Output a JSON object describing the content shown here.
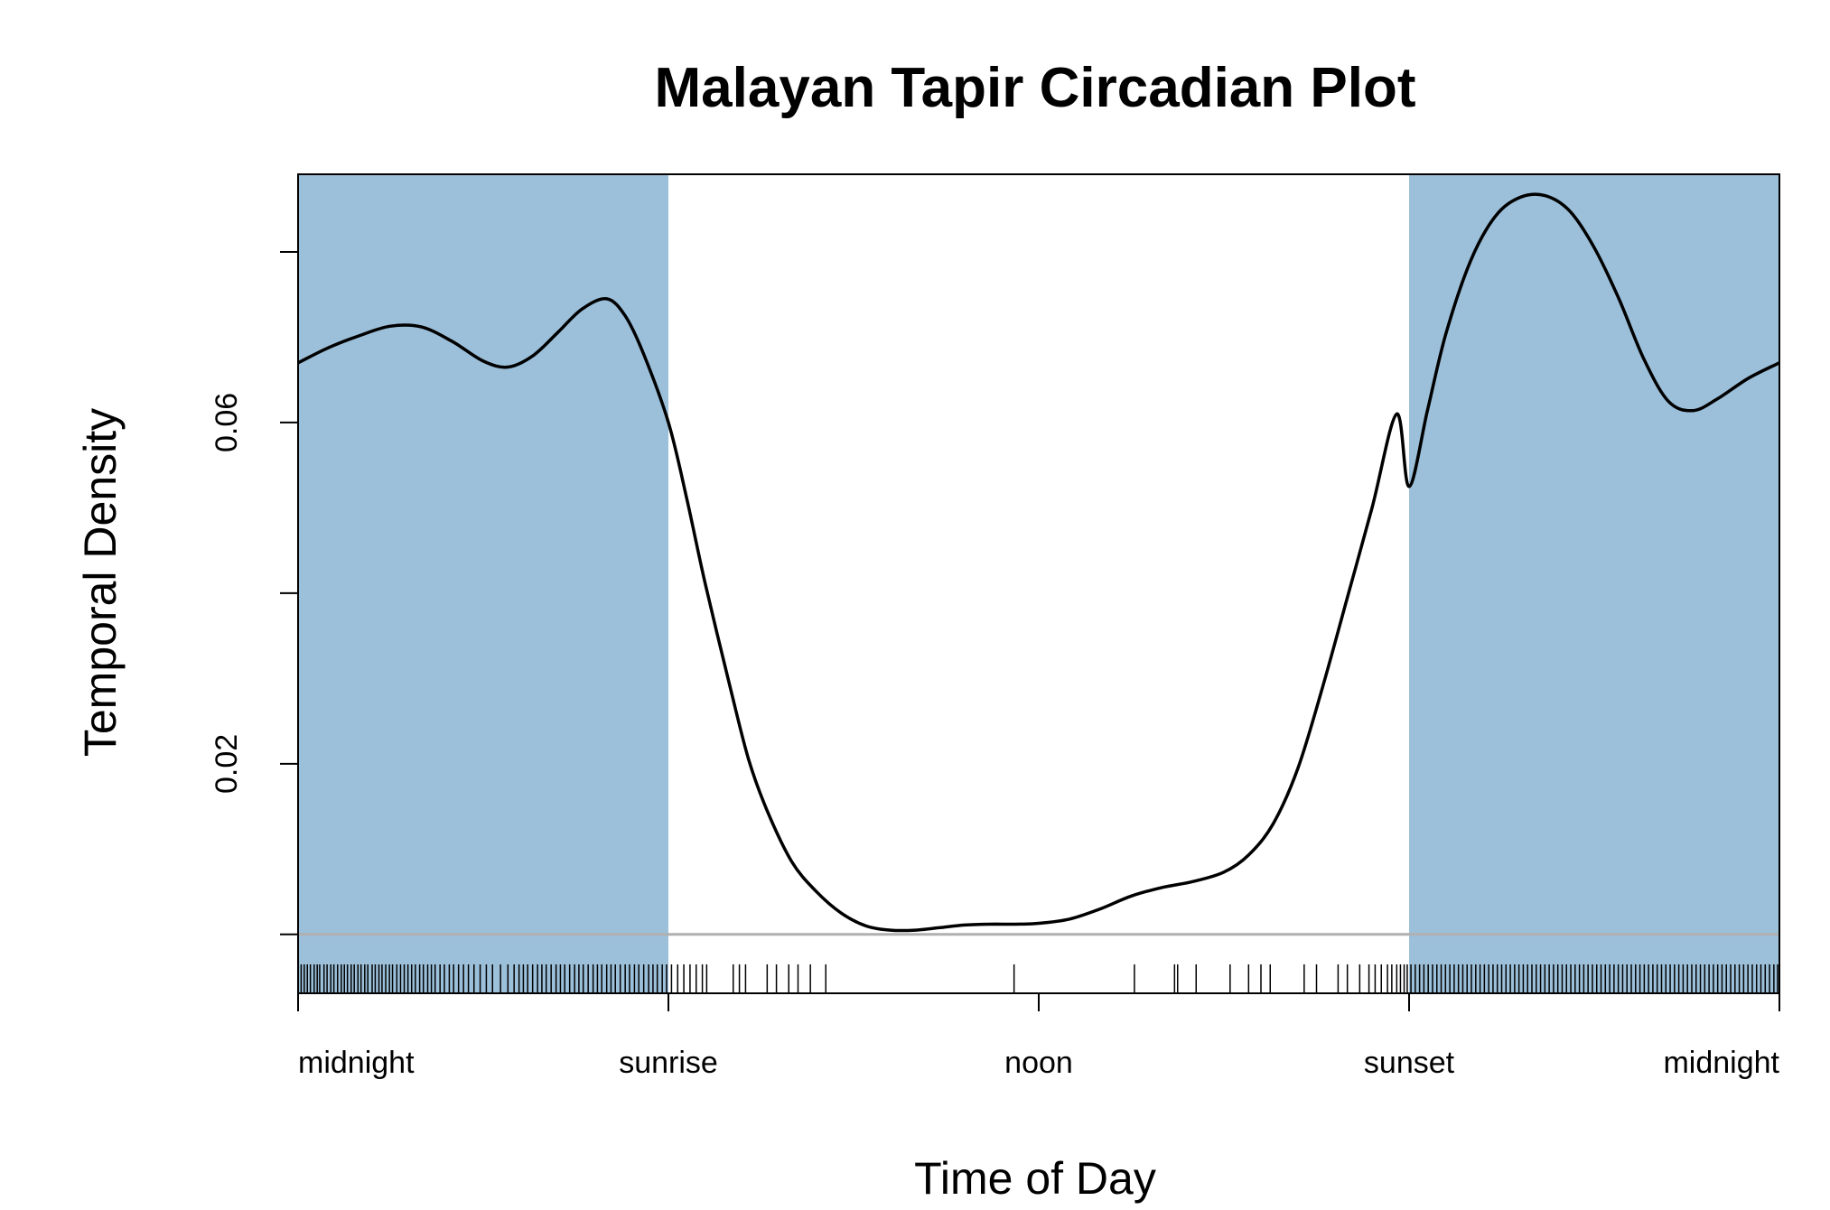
{
  "chart_data": {
    "type": "area",
    "title": "Malayan Tapir Circadian Plot",
    "xlabel": "Time of Day",
    "ylabel": "Temporal Density",
    "xlim": [
      0,
      24
    ],
    "ylim": [
      -0.0069,
      0.0891
    ],
    "x_ticks": [
      {
        "value": 0,
        "label": "midnight"
      },
      {
        "value": 6,
        "label": "sunrise"
      },
      {
        "value": 12,
        "label": "noon"
      },
      {
        "value": 18,
        "label": "sunset"
      },
      {
        "value": 24,
        "label": "midnight"
      }
    ],
    "y_ticks": [
      {
        "value": 0.0,
        "label": ""
      },
      {
        "value": 0.02,
        "label": "0.02"
      },
      {
        "value": 0.04,
        "label": ""
      },
      {
        "value": 0.06,
        "label": "0.06"
      },
      {
        "value": 0.08,
        "label": ""
      }
    ],
    "night_shading": [
      {
        "start": 0,
        "end": 6
      },
      {
        "start": 18,
        "end": 24
      }
    ],
    "colors": {
      "night": "#9cc0da",
      "curve": "#000000",
      "baseline": "#b0b0b0",
      "rug": "#000000"
    },
    "density_curve": {
      "x": [
        0,
        0.5,
        1,
        1.5,
        2,
        2.5,
        3,
        3.4,
        3.8,
        4.2,
        4.6,
        5,
        5.3,
        5.6,
        6,
        6.3,
        6.6,
        7,
        7.3,
        7.6,
        8,
        8.4,
        8.8,
        9.2,
        9.6,
        10,
        10.4,
        10.8,
        11.2,
        11.6,
        12,
        12.5,
        13,
        13.5,
        14,
        14.5,
        15,
        15.4,
        15.8,
        16.2,
        16.6,
        17,
        17.4,
        17.8,
        18,
        18.3,
        18.6,
        19,
        19.4,
        19.8,
        20.2,
        20.6,
        21,
        21.4,
        21.8,
        22.2,
        22.6,
        23,
        23.5,
        24
      ],
      "y": [
        0.067,
        0.0688,
        0.0702,
        0.0713,
        0.0712,
        0.0695,
        0.0672,
        0.0665,
        0.0678,
        0.0705,
        0.0733,
        0.0745,
        0.0725,
        0.068,
        0.06,
        0.051,
        0.041,
        0.029,
        0.0205,
        0.0145,
        0.0085,
        0.005,
        0.0025,
        0.001,
        0.0005,
        0.0005,
        0.0008,
        0.0011,
        0.0012,
        0.0012,
        0.0013,
        0.0018,
        0.003,
        0.0045,
        0.0055,
        0.0062,
        0.0073,
        0.0093,
        0.013,
        0.0195,
        0.029,
        0.0395,
        0.05,
        0.061,
        0.0525,
        0.0615,
        0.0705,
        0.079,
        0.0842,
        0.0864,
        0.0866,
        0.0848,
        0.0805,
        0.0745,
        0.0675,
        0.0625,
        0.0614,
        0.0628,
        0.0652,
        0.067
      ]
    },
    "rug_events": [
      0.05,
      0.1,
      0.15,
      0.2,
      0.26,
      0.31,
      0.35,
      0.42,
      0.47,
      0.53,
      0.58,
      0.64,
      0.7,
      0.75,
      0.8,
      0.86,
      0.91,
      0.97,
      1.02,
      1.08,
      1.13,
      1.2,
      1.25,
      1.31,
      1.36,
      1.42,
      1.48,
      1.53,
      1.6,
      1.66,
      1.72,
      1.78,
      1.84,
      1.9,
      1.97,
      2.03,
      2.1,
      2.16,
      2.22,
      2.3,
      2.37,
      2.45,
      2.52,
      2.6,
      2.68,
      2.76,
      2.85,
      2.95,
      3.05,
      3.15,
      3.28,
      3.4,
      3.5,
      3.58,
      3.65,
      3.72,
      3.8,
      3.88,
      3.95,
      4.02,
      4.1,
      4.18,
      4.25,
      4.32,
      4.4,
      4.48,
      4.55,
      4.62,
      4.7,
      4.78,
      4.85,
      4.92,
      5.0,
      5.07,
      5.14,
      5.22,
      5.3,
      5.37,
      5.45,
      5.52,
      5.6,
      5.68,
      5.75,
      5.82,
      5.9,
      5.97,
      6.05,
      6.15,
      6.25,
      6.35,
      6.45,
      6.55,
      6.62,
      7.05,
      7.15,
      7.25,
      7.6,
      7.75,
      7.95,
      8.1,
      8.3,
      8.55,
      11.6,
      13.55,
      14.2,
      14.25,
      14.55,
      15.1,
      15.4,
      15.6,
      15.75,
      16.3,
      16.5,
      16.85,
      17.0,
      17.2,
      17.35,
      17.45,
      17.55,
      17.65,
      17.72,
      17.8,
      17.86,
      17.92,
      17.97,
      18.03,
      18.1,
      18.17,
      18.24,
      18.31,
      18.38,
      18.45,
      18.52,
      18.59,
      18.66,
      18.73,
      18.8,
      18.87,
      18.94,
      19.01,
      19.08,
      19.15,
      19.22,
      19.29,
      19.36,
      19.43,
      19.5,
      19.57,
      19.64,
      19.71,
      19.78,
      19.85,
      19.92,
      19.99,
      20.06,
      20.13,
      20.2,
      20.27,
      20.34,
      20.41,
      20.48,
      20.55,
      20.62,
      20.69,
      20.76,
      20.83,
      20.9,
      20.97,
      21.04,
      21.11,
      21.18,
      21.25,
      21.32,
      21.39,
      21.46,
      21.53,
      21.6,
      21.67,
      21.74,
      21.81,
      21.88,
      21.95,
      22.02,
      22.09,
      22.16,
      22.23,
      22.3,
      22.37,
      22.44,
      22.51,
      22.58,
      22.65,
      22.72,
      22.79,
      22.86,
      22.93,
      23.0,
      23.07,
      23.14,
      23.21,
      23.28,
      23.35,
      23.42,
      23.49,
      23.56,
      23.63,
      23.7,
      23.77,
      23.84,
      23.91,
      23.97
    ]
  }
}
